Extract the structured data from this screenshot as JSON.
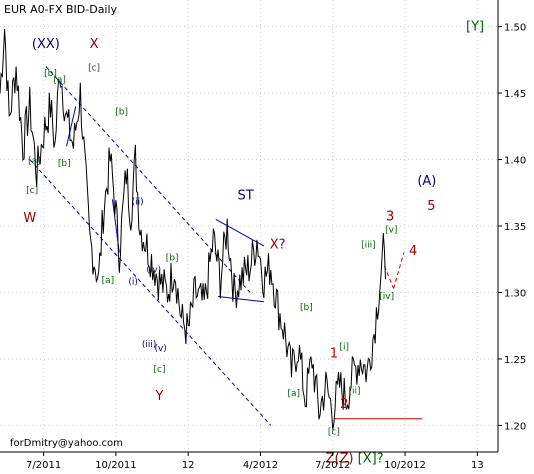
{
  "chart_data": {
    "type": "line",
    "title": "EUR A0-FX BID-Daily",
    "xlabel": "",
    "ylabel": "",
    "ylim": [
      1.18,
      1.52
    ],
    "y_ticks": [
      1.2,
      1.25,
      1.3,
      1.35,
      1.4,
      1.45,
      1.5
    ],
    "y_tick_labels": [
      "1.20",
      "1.25",
      "1.30",
      "1.35",
      "1.40",
      "1.45",
      "1.50"
    ],
    "x_ticks": [
      {
        "i": 0,
        "label": "7/2011"
      },
      {
        "i": 63,
        "label": "10/2011"
      },
      {
        "i": 126,
        "label": "12"
      },
      {
        "i": 189,
        "label": "4/2012"
      },
      {
        "i": 252,
        "label": "7/2012"
      },
      {
        "i": 315,
        "label": "10/2012"
      },
      {
        "i": 378,
        "label": "13"
      }
    ],
    "x_domain": [
      -38,
      396
    ],
    "footer": "forDmitry@yahoo.com",
    "series": [
      {
        "color": "#000000",
        "anchors": [
          [
            -38,
            1.45
          ],
          [
            -34,
            1.5
          ],
          [
            -30,
            1.43
          ],
          [
            -24,
            1.47
          ],
          [
            -18,
            1.41
          ],
          [
            -12,
            1.44
          ],
          [
            -6,
            1.39
          ],
          [
            0,
            1.42
          ],
          [
            6,
            1.44
          ],
          [
            10,
            1.41
          ],
          [
            14,
            1.47
          ],
          [
            20,
            1.43
          ],
          [
            26,
            1.41
          ],
          [
            32,
            1.45
          ],
          [
            40,
            1.34
          ],
          [
            48,
            1.31
          ],
          [
            52,
            1.36
          ],
          [
            58,
            1.4
          ],
          [
            62,
            1.37
          ],
          [
            66,
            1.33
          ],
          [
            72,
            1.39
          ],
          [
            76,
            1.36
          ],
          [
            80,
            1.4
          ],
          [
            84,
            1.35
          ],
          [
            92,
            1.33
          ],
          [
            100,
            1.31
          ],
          [
            108,
            1.3
          ],
          [
            114,
            1.32
          ],
          [
            120,
            1.28
          ],
          [
            126,
            1.27
          ],
          [
            132,
            1.3
          ],
          [
            140,
            1.29
          ],
          [
            148,
            1.34
          ],
          [
            154,
            1.31
          ],
          [
            160,
            1.35
          ],
          [
            166,
            1.3
          ],
          [
            172,
            1.31
          ],
          [
            180,
            1.32
          ],
          [
            186,
            1.34
          ],
          [
            192,
            1.31
          ],
          [
            198,
            1.32
          ],
          [
            204,
            1.29
          ],
          [
            210,
            1.27
          ],
          [
            216,
            1.24
          ],
          [
            222,
            1.26
          ],
          [
            228,
            1.22
          ],
          [
            234,
            1.25
          ],
          [
            240,
            1.21
          ],
          [
            246,
            1.23
          ],
          [
            252,
            1.21
          ],
          [
            258,
            1.23
          ],
          [
            264,
            1.22
          ],
          [
            270,
            1.24
          ],
          [
            276,
            1.25
          ],
          [
            282,
            1.24
          ],
          [
            288,
            1.27
          ],
          [
            292,
            1.3
          ],
          [
            296,
            1.33
          ],
          [
            298,
            1.31
          ]
        ]
      }
    ],
    "channels": [
      {
        "color": "#0000bb",
        "dash": true,
        "from": [
          2,
          1.47
        ],
        "to": [
          180,
          1.3
        ]
      },
      {
        "color": "#0000bb",
        "dash": true,
        "from": [
          -12,
          1.4
        ],
        "to": [
          198,
          1.2
        ]
      },
      {
        "color": "#0000bb",
        "dash": false,
        "from": [
          150,
          1.355
        ],
        "to": [
          192,
          1.335
        ]
      },
      {
        "color": "#0000bb",
        "dash": false,
        "from": [
          152,
          1.297
        ],
        "to": [
          192,
          1.293
        ]
      },
      {
        "color": "#0000bb",
        "dash": false,
        "from": [
          20,
          1.41
        ],
        "to": [
          28,
          1.44
        ]
      },
      {
        "color": "#0000bb",
        "dash": false,
        "from": [
          60,
          1.37
        ],
        "to": [
          66,
          1.33
        ]
      },
      {
        "color": "#cc0000",
        "dash": false,
        "from": [
          253,
          1.205
        ],
        "to": [
          330,
          1.205
        ]
      },
      {
        "color": "#cc0000",
        "dash": true,
        "from": [
          297,
          1.32
        ],
        "to": [
          305,
          1.303
        ]
      },
      {
        "color": "#cc0000",
        "dash": true,
        "from": [
          305,
          1.303
        ],
        "to": [
          314,
          1.33
        ]
      }
    ],
    "annotations": [
      {
        "text": "(XX)",
        "x": 2,
        "y": 1.484,
        "color": "#000080",
        "size": 13
      },
      {
        "text": "X",
        "x": 44,
        "y": 1.484,
        "color": "#990000",
        "size": 13
      },
      {
        "text": "[a]",
        "x": 14,
        "y": 1.458,
        "color": "#006600",
        "size": 9
      },
      {
        "text": "[b]",
        "x": 6,
        "y": 1.463,
        "color": "#006600",
        "size": 9
      },
      {
        "text": "[c]",
        "x": 44,
        "y": 1.467,
        "color": "#006600",
        "size": 9
      },
      {
        "text": "[b]",
        "x": 68,
        "y": 1.434,
        "color": "#006600",
        "size": 9
      },
      {
        "text": "[a]",
        "x": -8,
        "y": 1.397,
        "color": "#006600",
        "size": 9
      },
      {
        "text": "[b]",
        "x": 18,
        "y": 1.395,
        "color": "#006600",
        "size": 9
      },
      {
        "text": "[c]",
        "x": -10,
        "y": 1.375,
        "color": "#006600",
        "size": 9
      },
      {
        "text": "W",
        "x": -12,
        "y": 1.353,
        "color": "#990000",
        "size": 13
      },
      {
        "text": "(ii)",
        "x": 82,
        "y": 1.366,
        "color": "#000080",
        "size": 9
      },
      {
        "text": "[a]",
        "x": 56,
        "y": 1.307,
        "color": "#006600",
        "size": 9
      },
      {
        "text": "(i)",
        "x": 78,
        "y": 1.306,
        "color": "#000080",
        "size": 9
      },
      {
        "text": "(iv)",
        "x": 96,
        "y": 1.315,
        "color": "#000080",
        "size": 9
      },
      {
        "text": "[b]",
        "x": 112,
        "y": 1.324,
        "color": "#006600",
        "size": 9
      },
      {
        "text": "(iii)",
        "x": 92,
        "y": 1.259,
        "color": "#000080",
        "size": 9
      },
      {
        "text": "(v)",
        "x": 102,
        "y": 1.256,
        "color": "#000080",
        "size": 9
      },
      {
        "text": "[c]",
        "x": 101,
        "y": 1.24,
        "color": "#006600",
        "size": 9
      },
      {
        "text": "Y",
        "x": 101,
        "y": 1.219,
        "color": "#990000",
        "size": 13
      },
      {
        "text": "ST",
        "x": 176,
        "y": 1.37,
        "color": "#000080",
        "size": 13
      },
      {
        "text": "X?",
        "x": 204,
        "y": 1.333,
        "color": "#990000",
        "size": 13
      },
      {
        "text": "[b]",
        "x": 229,
        "y": 1.287,
        "color": "#006600",
        "size": 9
      },
      {
        "text": "[a]",
        "x": 218,
        "y": 1.222,
        "color": "#006600",
        "size": 9
      },
      {
        "text": "1",
        "x": 253,
        "y": 1.251,
        "color": "#cc0000",
        "size": 13
      },
      {
        "text": "[i]",
        "x": 262,
        "y": 1.257,
        "color": "#006600",
        "size": 9
      },
      {
        "text": "2",
        "x": 262,
        "y": 1.213,
        "color": "#cc0000",
        "size": 13
      },
      {
        "text": "[ii]",
        "x": 271,
        "y": 1.224,
        "color": "#006600",
        "size": 9
      },
      {
        "text": "[c]",
        "x": 253,
        "y": 1.193,
        "color": "#006600",
        "size": 9
      },
      {
        "text": "Z(Z)",
        "x": 258,
        "y": 1.172,
        "color": "#990000",
        "size": 13
      },
      {
        "text": "[X]?",
        "x": 285,
        "y": 1.172,
        "color": "#006600",
        "size": 13
      },
      {
        "text": "[iii]",
        "x": 283,
        "y": 1.334,
        "color": "#006600",
        "size": 9
      },
      {
        "text": "[iv]",
        "x": 299,
        "y": 1.295,
        "color": "#006600",
        "size": 9
      },
      {
        "text": "[v]",
        "x": 303,
        "y": 1.345,
        "color": "#006600",
        "size": 9
      },
      {
        "text": "3",
        "x": 302,
        "y": 1.354,
        "color": "#990000",
        "size": 13
      },
      {
        "text": "4",
        "x": 322,
        "y": 1.328,
        "color": "#990000",
        "size": 13
      },
      {
        "text": "(A)",
        "x": 334,
        "y": 1.381,
        "color": "#000080",
        "size": 13
      },
      {
        "text": "5",
        "x": 338,
        "y": 1.362,
        "color": "#990000",
        "size": 13
      },
      {
        "text": "[Y]",
        "x": 376,
        "y": 1.497,
        "color": "#006600",
        "size": 13
      }
    ]
  }
}
